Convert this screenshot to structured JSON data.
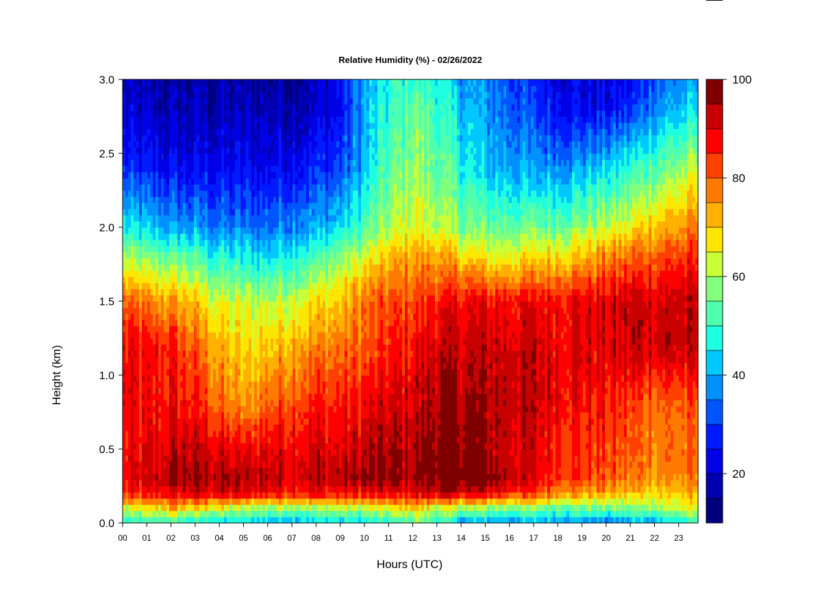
{
  "chart_data": {
    "type": "heatmap",
    "title": "Relative Humidity (%) - 02/26/2022",
    "xlabel": "Hours (UTC)",
    "ylabel": "Height (km)",
    "x_ticks": [
      "00",
      "01",
      "02",
      "03",
      "04",
      "05",
      "06",
      "07",
      "08",
      "09",
      "10",
      "11",
      "12",
      "13",
      "14",
      "15",
      "16",
      "17",
      "18",
      "19",
      "20",
      "21",
      "22",
      "23"
    ],
    "y_ticks": [
      "0.0",
      "0.5",
      "1.0",
      "1.5",
      "2.0",
      "2.5",
      "3.0"
    ],
    "xlim": [
      0,
      23.8
    ],
    "ylim": [
      0,
      3.0
    ],
    "colorbar": {
      "label_ticks": [
        "20",
        "40",
        "60",
        "80",
        "100"
      ],
      "levels": [
        10,
        15,
        20,
        25,
        30,
        35,
        40,
        45,
        50,
        55,
        60,
        65,
        70,
        75,
        80,
        85,
        90,
        95,
        100
      ],
      "colors": [
        "#00007F",
        "#0000B2",
        "#0000E6",
        "#001AFF",
        "#0055FF",
        "#0090FF",
        "#00C8FF",
        "#1EFFE0",
        "#50FFAE",
        "#82FF7C",
        "#C8FF36",
        "#FFE600",
        "#FFB000",
        "#FF7A00",
        "#FF4000",
        "#FF0000",
        "#C80000",
        "#800000"
      ]
    },
    "hours": [
      0,
      1,
      2,
      3,
      4,
      5,
      6,
      7,
      8,
      9,
      10,
      11,
      12,
      13,
      14,
      15,
      16,
      17,
      18,
      19,
      20,
      21,
      22,
      23.8
    ],
    "heights_km": [
      0.0,
      0.1,
      0.2,
      0.3,
      0.5,
      0.8,
      1.2,
      1.5,
      1.8,
      2.0,
      2.4,
      2.8,
      3.0
    ],
    "values": [
      [
        45,
        46,
        47,
        44,
        42,
        42,
        42,
        42,
        43,
        43,
        42,
        45,
        55,
        48,
        40,
        38,
        38,
        40,
        40,
        38,
        32,
        38,
        40,
        48
      ],
      [
        62,
        65,
        72,
        68,
        65,
        60,
        60,
        60,
        60,
        62,
        62,
        64,
        70,
        64,
        60,
        58,
        58,
        58,
        56,
        56,
        55,
        56,
        60,
        64
      ],
      [
        84,
        85,
        90,
        90,
        90,
        90,
        88,
        88,
        88,
        86,
        88,
        88,
        90,
        92,
        92,
        90,
        86,
        82,
        78,
        75,
        72,
        70,
        70,
        72
      ],
      [
        88,
        90,
        95,
        96,
        95,
        94,
        94,
        92,
        94,
        94,
        96,
        96,
        96,
        100,
        100,
        98,
        94,
        90,
        86,
        84,
        80,
        78,
        76,
        76
      ],
      [
        86,
        88,
        92,
        92,
        90,
        88,
        90,
        90,
        90,
        90,
        92,
        94,
        95,
        98,
        98,
        95,
        92,
        90,
        86,
        84,
        82,
        80,
        78,
        78
      ],
      [
        88,
        86,
        88,
        86,
        80,
        74,
        80,
        84,
        86,
        86,
        88,
        90,
        92,
        96,
        96,
        95,
        94,
        92,
        90,
        88,
        86,
        82,
        80,
        80
      ],
      [
        88,
        86,
        86,
        80,
        72,
        68,
        70,
        74,
        76,
        78,
        80,
        84,
        88,
        92,
        92,
        92,
        92,
        92,
        90,
        90,
        90,
        92,
        94,
        92
      ],
      [
        80,
        76,
        74,
        70,
        64,
        62,
        62,
        64,
        68,
        70,
        78,
        82,
        82,
        86,
        88,
        88,
        88,
        88,
        88,
        90,
        90,
        92,
        92,
        92
      ],
      [
        60,
        56,
        55,
        52,
        48,
        46,
        45,
        48,
        52,
        58,
        64,
        70,
        75,
        74,
        70,
        66,
        66,
        68,
        70,
        72,
        76,
        80,
        82,
        84
      ],
      [
        45,
        42,
        40,
        38,
        36,
        35,
        35,
        38,
        40,
        44,
        52,
        60,
        66,
        62,
        58,
        55,
        55,
        56,
        56,
        58,
        62,
        66,
        72,
        76
      ],
      [
        28,
        26,
        24,
        24,
        24,
        24,
        24,
        26,
        28,
        30,
        42,
        52,
        60,
        55,
        48,
        42,
        40,
        38,
        38,
        40,
        44,
        48,
        54,
        62
      ],
      [
        20,
        18,
        18,
        18,
        18,
        18,
        18,
        18,
        20,
        24,
        40,
        48,
        56,
        50,
        42,
        38,
        34,
        30,
        26,
        24,
        24,
        28,
        38,
        44
      ],
      [
        18,
        16,
        16,
        16,
        16,
        16,
        16,
        16,
        18,
        24,
        40,
        46,
        52,
        48,
        40,
        36,
        32,
        28,
        24,
        22,
        22,
        24,
        32,
        40
      ]
    ]
  }
}
